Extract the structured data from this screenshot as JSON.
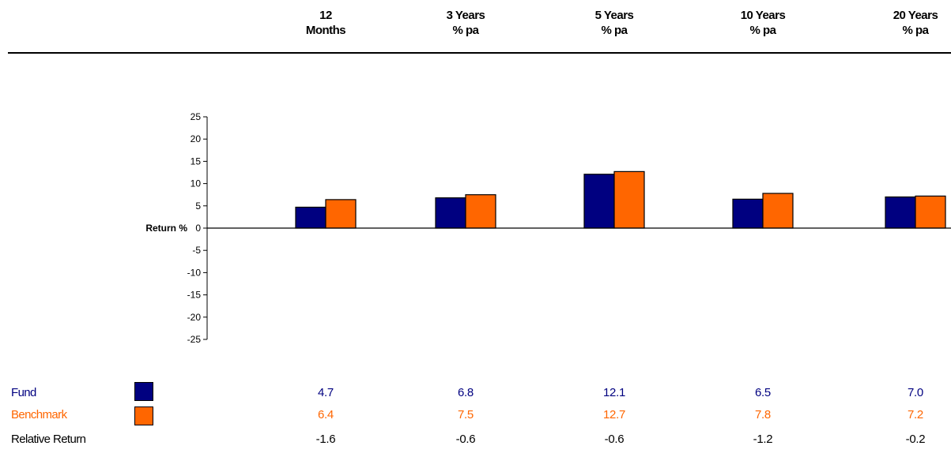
{
  "columns": [
    {
      "line1": "12",
      "line2": "Months"
    },
    {
      "line1": "3 Years",
      "line2": "% pa"
    },
    {
      "line1": "5 Years",
      "line2": "% pa"
    },
    {
      "line1": "10 Years",
      "line2": "% pa"
    },
    {
      "line1": "20 Years",
      "line2": "% pa"
    }
  ],
  "colors": {
    "fund": "#000080",
    "benchmark": "#FF6600",
    "relative": "#000000"
  },
  "chart_data": {
    "type": "bar",
    "categories": [
      "12 Months",
      "3 Years % pa",
      "5 Years % pa",
      "10 Years % pa",
      "20 Years % pa"
    ],
    "series": [
      {
        "name": "Fund",
        "values": [
          4.7,
          6.8,
          12.1,
          6.5,
          7.0
        ]
      },
      {
        "name": "Benchmark",
        "values": [
          6.4,
          7.5,
          12.7,
          7.8,
          7.2
        ]
      }
    ],
    "ylabel": "Return %",
    "ylim": [
      -25,
      25
    ],
    "yticks": [
      "25",
      "20",
      "15",
      "10",
      "5",
      "0",
      "-5",
      "-10",
      "-15",
      "-20",
      "-25"
    ],
    "legend_placement": "bottom-left"
  },
  "table": {
    "rows": [
      {
        "label": "Fund",
        "values": [
          "4.7",
          "6.8",
          "12.1",
          "6.5",
          "7.0"
        ]
      },
      {
        "label": "Benchmark",
        "values": [
          "6.4",
          "7.5",
          "12.7",
          "7.8",
          "7.2"
        ]
      },
      {
        "label": "Relative Return",
        "values": [
          "-1.6",
          "-0.6",
          "-0.6",
          "-1.2",
          "-0.2"
        ]
      }
    ]
  }
}
